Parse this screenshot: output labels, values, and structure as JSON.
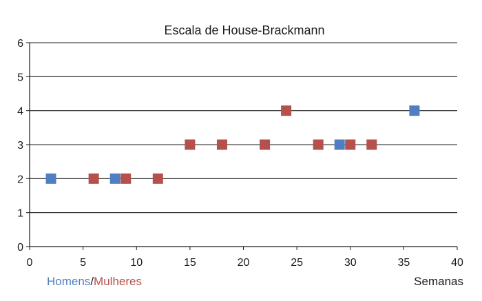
{
  "chart_data": {
    "type": "scatter",
    "title": "Escala de House-Brackmann",
    "xlabel": "Semanas",
    "ylabel": "",
    "xlim": [
      0,
      40
    ],
    "ylim": [
      0,
      6
    ],
    "x_ticks": [
      "0",
      "5",
      "10",
      "15",
      "20",
      "25",
      "30",
      "35",
      "40"
    ],
    "y_ticks": [
      "0",
      "1",
      "2",
      "3",
      "4",
      "5",
      "6"
    ],
    "grid": "horizontal",
    "legend": {
      "placement": "bottom-left",
      "separator": "/",
      "entries": [
        "Homens",
        "Mulheres"
      ]
    },
    "series": [
      {
        "name": "Homens",
        "color": "#4f7fc1",
        "points": [
          {
            "x": 2,
            "y": 2
          },
          {
            "x": 8,
            "y": 2
          },
          {
            "x": 29,
            "y": 3
          },
          {
            "x": 36,
            "y": 4
          }
        ]
      },
      {
        "name": "Mulheres",
        "color": "#b5504d",
        "points": [
          {
            "x": 6,
            "y": 2
          },
          {
            "x": 9,
            "y": 2
          },
          {
            "x": 12,
            "y": 2
          },
          {
            "x": 15,
            "y": 3
          },
          {
            "x": 18,
            "y": 3
          },
          {
            "x": 22,
            "y": 3
          },
          {
            "x": 24,
            "y": 4
          },
          {
            "x": 27,
            "y": 3
          },
          {
            "x": 30,
            "y": 3
          },
          {
            "x": 32,
            "y": 3
          }
        ]
      }
    ]
  }
}
